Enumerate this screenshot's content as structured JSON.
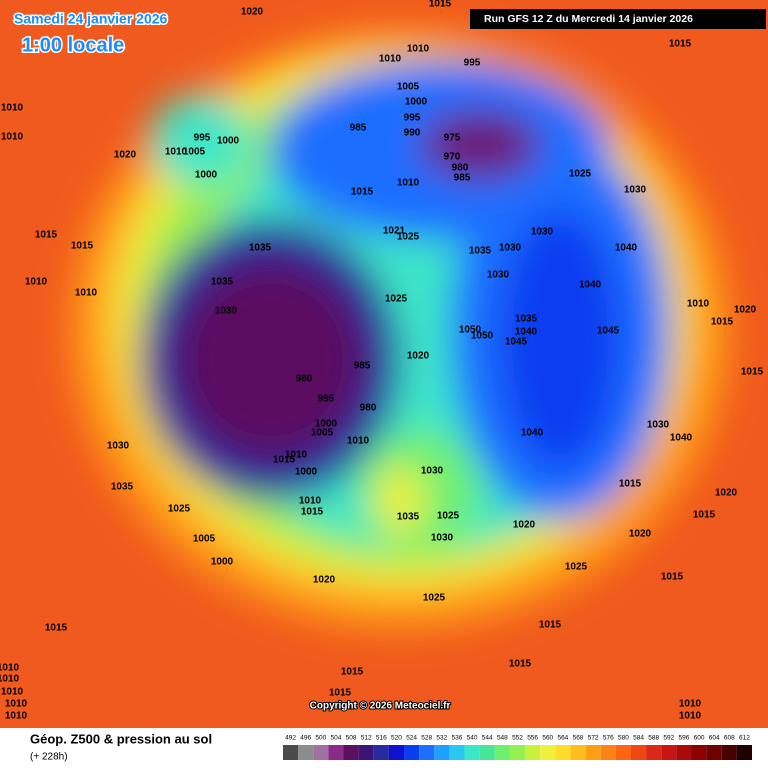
{
  "header": {
    "date": "Samedi 24 janvier 2026",
    "time": "1:00 locale",
    "run": "Run GFS 12 Z du Mercredi 14 janvier 2026"
  },
  "copyright": "Copyright © 2026 Meteociel.fr",
  "footer": {
    "title": "Géop. Z500 & pression au sol",
    "lead": "(+ 228h)"
  },
  "colorbar": {
    "ticks": [
      492,
      496,
      500,
      504,
      508,
      512,
      516,
      520,
      524,
      528,
      532,
      536,
      540,
      544,
      548,
      552,
      556,
      560,
      564,
      568,
      572,
      576,
      580,
      584,
      588,
      592,
      596,
      600,
      604,
      608,
      612
    ],
    "colors": [
      "#4b4b4b",
      "#8c8c8c",
      "#a070a0",
      "#8a2a8a",
      "#5a1060",
      "#3c1478",
      "#2a2aa0",
      "#1010d0",
      "#0a3cf0",
      "#1e6eff",
      "#1ea0ff",
      "#28c8f0",
      "#3ce6c8",
      "#46e696",
      "#6ef06e",
      "#96f050",
      "#c8f03c",
      "#f0f03c",
      "#ffdc28",
      "#ffbe1e",
      "#ffa014",
      "#ff8214",
      "#ff6414",
      "#f04614",
      "#dc2814",
      "#c81414",
      "#aa0a0a",
      "#8c0000",
      "#6e0000",
      "#460000",
      "#1e0000"
    ]
  },
  "isobar_labels": [
    1020,
    1015,
    1015,
    1010,
    1010,
    995,
    1005,
    1000,
    995,
    985,
    990,
    975,
    970,
    980,
    985,
    995,
    1000,
    1010,
    1005,
    1000,
    1020,
    1010,
    1015,
    1025,
    1030,
    1021,
    1025,
    1035,
    1030,
    1030,
    1040,
    1035,
    1035,
    1030,
    1015,
    1015,
    1010,
    1010,
    1025,
    1030,
    1040,
    1035,
    1040,
    1045,
    1045,
    1050,
    1050,
    1020,
    1010,
    1020,
    1015,
    980,
    985,
    980,
    995,
    1000,
    1005,
    1010,
    1015,
    1010,
    1000,
    1010,
    1015,
    1030,
    1035,
    1025,
    1005,
    1000,
    1030,
    1035,
    1025,
    1030,
    1020,
    1025,
    1040,
    1030,
    1040,
    1020,
    1015,
    1015,
    1020,
    1015,
    1020,
    1025,
    1015,
    1015,
    1015,
    1015,
    1015,
    1010,
    1010,
    1010,
    1010,
    1010,
    1010,
    1010,
    1015,
    1010,
    1010
  ]
}
